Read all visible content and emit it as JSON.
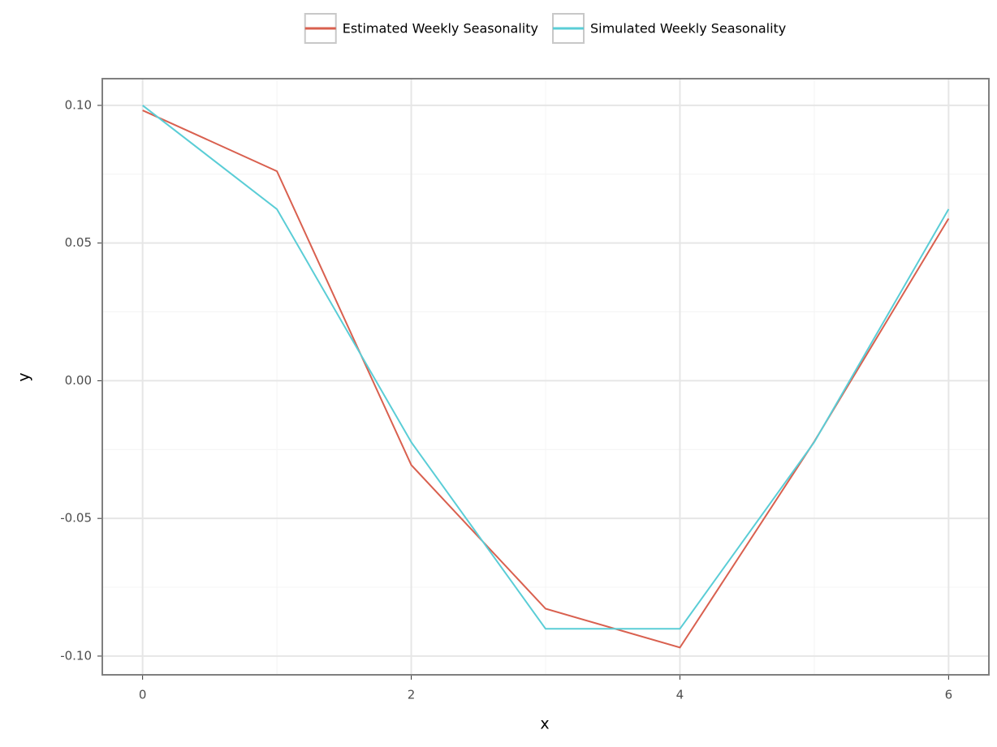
{
  "chart_data": {
    "type": "line",
    "x_label": "x",
    "y_label": "y",
    "x": [
      0,
      1,
      2,
      3,
      4,
      5,
      6
    ],
    "series": [
      {
        "name": "Estimated Weekly Seasonality",
        "color": "#d9604f",
        "values": [
          0.0982,
          0.0761,
          -0.0306,
          -0.0828,
          -0.0969,
          -0.0221,
          0.0589
        ]
      },
      {
        "name": "Simulated Weekly Seasonality",
        "color": "#5acdd6",
        "values": [
          0.1,
          0.0623,
          -0.0223,
          -0.0901,
          -0.0901,
          -0.0223,
          0.0623
        ]
      }
    ],
    "xlim": [
      -0.3,
      6.3
    ],
    "ylim": [
      -0.1068,
      0.1097
    ],
    "xticks": [
      0,
      2,
      4,
      6
    ],
    "yticks": [
      {
        "value": -0.1,
        "label": "-0.10"
      },
      {
        "value": -0.05,
        "label": "-0.05"
      },
      {
        "value": 0,
        "label": "0.00"
      },
      {
        "value": 0.05,
        "label": "0.05"
      },
      {
        "value": 0.1,
        "label": "0.10"
      }
    ],
    "grid": true,
    "legend_position": "top"
  }
}
